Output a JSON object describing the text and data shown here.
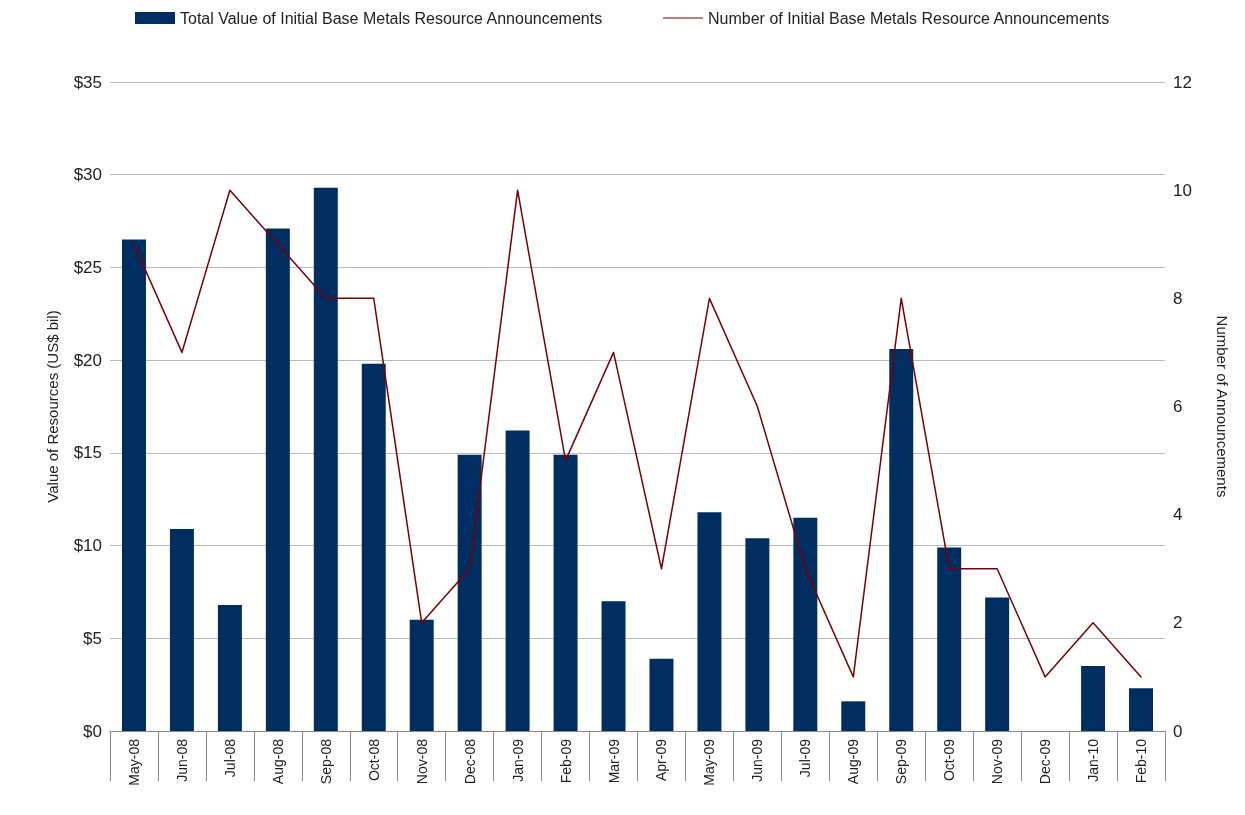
{
  "chart_data": {
    "type": "bar",
    "ylabel": "Value of Resources (US$ bil)",
    "y2label": "Number of Announcements",
    "categories": [
      "May-08",
      "Jun-08",
      "Jul-08",
      "Aug-08",
      "Sep-08",
      "Oct-08",
      "Nov-08",
      "Dec-08",
      "Jan-09",
      "Feb-09",
      "Mar-09",
      "Apr-09",
      "May-09",
      "Jun-09",
      "Jul-09",
      "Aug-09",
      "Sep-09",
      "Oct-09",
      "Nov-09",
      "Dec-09",
      "Jan-10",
      "Feb-10"
    ],
    "series": [
      {
        "name": "Total Value of Initial Base Metals Resource Announcements",
        "color": "#002e63",
        "values": [
          26.5,
          10.9,
          6.8,
          27.1,
          29.3,
          19.8,
          6.0,
          14.9,
          16.2,
          14.9,
          7.0,
          3.9,
          11.8,
          10.4,
          11.5,
          1.6,
          20.6,
          9.9,
          7.2,
          0,
          3.5,
          2.3
        ]
      },
      {
        "name": "Number of Initial Base Metals Resource Announcements",
        "type": "line",
        "axis": "y2",
        "color": "#7a0000",
        "values": [
          9,
          7,
          10,
          9,
          8,
          8,
          2,
          3,
          10,
          5,
          7,
          3,
          8,
          6,
          3,
          1,
          8,
          3,
          3,
          1,
          2,
          1
        ]
      }
    ],
    "ylim": [
      0,
      35
    ],
    "yticks": [
      {
        "value": 0,
        "label": "$0"
      },
      {
        "value": 5,
        "label": "$5"
      },
      {
        "value": 10,
        "label": "$10"
      },
      {
        "value": 15,
        "label": "$15"
      },
      {
        "value": 20,
        "label": "$20"
      },
      {
        "value": 25,
        "label": "$25"
      },
      {
        "value": 30,
        "label": "$30"
      },
      {
        "value": 35,
        "label": "$35"
      }
    ],
    "y2lim": [
      0,
      12
    ],
    "y2ticks": [
      0,
      2,
      4,
      6,
      8,
      10,
      12
    ],
    "grid": "y",
    "legend": "top",
    "marker": "none",
    "line_style": "solid"
  }
}
